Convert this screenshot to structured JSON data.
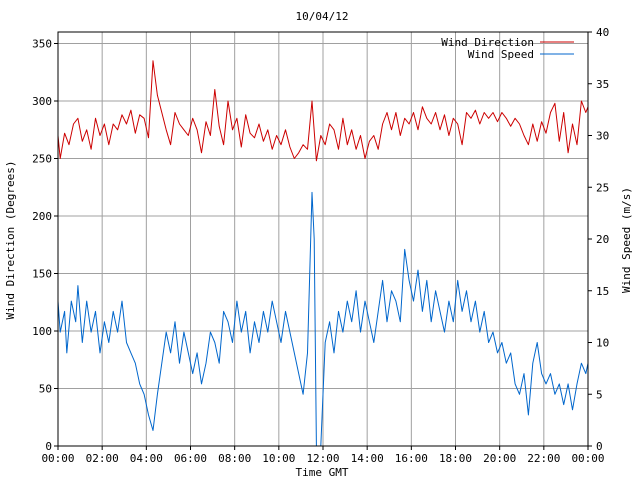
{
  "chart_data": {
    "type": "line",
    "title": "10/04/12",
    "xlabel": "Time GMT",
    "ylabel_left": "Wind Direction (Degrees)",
    "ylabel_right": "Wind Speed (m/s)",
    "x_unit": "hours",
    "xlim": [
      0,
      24
    ],
    "ylim_left": [
      0,
      360
    ],
    "ylim_right": [
      0,
      40
    ],
    "x_ticks": [
      0,
      2,
      4,
      6,
      8,
      10,
      12,
      14,
      16,
      18,
      20,
      22,
      24
    ],
    "x_tick_labels": [
      "00:00",
      "02:00",
      "04:00",
      "06:00",
      "08:00",
      "10:00",
      "12:00",
      "14:00",
      "16:00",
      "18:00",
      "20:00",
      "22:00",
      "00:00"
    ],
    "y_ticks_left": [
      0,
      50,
      100,
      150,
      200,
      250,
      300,
      350
    ],
    "y_tick_labels_left": [
      "0",
      "50",
      "100",
      "150",
      "200",
      "250",
      "300",
      "350"
    ],
    "y_ticks_right": [
      0,
      5,
      10,
      15,
      20,
      25,
      30,
      35,
      40
    ],
    "y_tick_labels_right": [
      "0",
      "5",
      "10",
      "15",
      "20",
      "25",
      "30",
      "35",
      "40"
    ],
    "grid": true,
    "legend_position": "top-right",
    "series": [
      {
        "name": "Wind Direction",
        "axis": "left",
        "color": "#cc0000",
        "points": [
          [
            0.0,
            270
          ],
          [
            0.1,
            250
          ],
          [
            0.3,
            272
          ],
          [
            0.5,
            262
          ],
          [
            0.7,
            280
          ],
          [
            0.9,
            285
          ],
          [
            1.1,
            265
          ],
          [
            1.3,
            275
          ],
          [
            1.5,
            258
          ],
          [
            1.7,
            285
          ],
          [
            1.9,
            270
          ],
          [
            2.1,
            280
          ],
          [
            2.3,
            262
          ],
          [
            2.5,
            280
          ],
          [
            2.7,
            275
          ],
          [
            2.9,
            288
          ],
          [
            3.1,
            280
          ],
          [
            3.3,
            292
          ],
          [
            3.5,
            272
          ],
          [
            3.7,
            288
          ],
          [
            3.9,
            285
          ],
          [
            4.1,
            268
          ],
          [
            4.3,
            335
          ],
          [
            4.5,
            305
          ],
          [
            4.7,
            290
          ],
          [
            4.9,
            275
          ],
          [
            5.1,
            262
          ],
          [
            5.3,
            290
          ],
          [
            5.5,
            280
          ],
          [
            5.7,
            275
          ],
          [
            5.9,
            270
          ],
          [
            6.1,
            285
          ],
          [
            6.3,
            275
          ],
          [
            6.5,
            255
          ],
          [
            6.7,
            282
          ],
          [
            6.9,
            270
          ],
          [
            7.1,
            310
          ],
          [
            7.3,
            278
          ],
          [
            7.5,
            262
          ],
          [
            7.7,
            300
          ],
          [
            7.9,
            275
          ],
          [
            8.1,
            285
          ],
          [
            8.3,
            260
          ],
          [
            8.5,
            288
          ],
          [
            8.7,
            272
          ],
          [
            8.9,
            268
          ],
          [
            9.1,
            280
          ],
          [
            9.3,
            265
          ],
          [
            9.5,
            275
          ],
          [
            9.7,
            258
          ],
          [
            9.9,
            270
          ],
          [
            10.1,
            262
          ],
          [
            10.3,
            275
          ],
          [
            10.5,
            260
          ],
          [
            10.7,
            250
          ],
          [
            10.9,
            255
          ],
          [
            11.1,
            262
          ],
          [
            11.3,
            258
          ],
          [
            11.5,
            300
          ],
          [
            11.7,
            248
          ],
          [
            11.9,
            270
          ],
          [
            12.1,
            262
          ],
          [
            12.3,
            280
          ],
          [
            12.5,
            275
          ],
          [
            12.7,
            258
          ],
          [
            12.9,
            285
          ],
          [
            13.1,
            262
          ],
          [
            13.3,
            275
          ],
          [
            13.5,
            258
          ],
          [
            13.7,
            270
          ],
          [
            13.9,
            250
          ],
          [
            14.1,
            265
          ],
          [
            14.3,
            270
          ],
          [
            14.5,
            258
          ],
          [
            14.7,
            280
          ],
          [
            14.9,
            290
          ],
          [
            15.1,
            275
          ],
          [
            15.3,
            290
          ],
          [
            15.5,
            270
          ],
          [
            15.7,
            285
          ],
          [
            15.9,
            280
          ],
          [
            16.1,
            290
          ],
          [
            16.3,
            275
          ],
          [
            16.5,
            295
          ],
          [
            16.7,
            285
          ],
          [
            16.9,
            280
          ],
          [
            17.1,
            290
          ],
          [
            17.3,
            275
          ],
          [
            17.5,
            288
          ],
          [
            17.7,
            270
          ],
          [
            17.9,
            285
          ],
          [
            18.1,
            280
          ],
          [
            18.3,
            262
          ],
          [
            18.5,
            290
          ],
          [
            18.7,
            285
          ],
          [
            18.9,
            292
          ],
          [
            19.1,
            280
          ],
          [
            19.3,
            290
          ],
          [
            19.5,
            285
          ],
          [
            19.7,
            290
          ],
          [
            19.9,
            282
          ],
          [
            20.1,
            290
          ],
          [
            20.3,
            285
          ],
          [
            20.5,
            278
          ],
          [
            20.7,
            285
          ],
          [
            20.9,
            280
          ],
          [
            21.1,
            270
          ],
          [
            21.3,
            262
          ],
          [
            21.5,
            280
          ],
          [
            21.7,
            265
          ],
          [
            21.9,
            282
          ],
          [
            22.1,
            272
          ],
          [
            22.3,
            290
          ],
          [
            22.5,
            298
          ],
          [
            22.7,
            265
          ],
          [
            22.9,
            290
          ],
          [
            23.1,
            255
          ],
          [
            23.3,
            280
          ],
          [
            23.5,
            262
          ],
          [
            23.7,
            300
          ],
          [
            23.9,
            290
          ],
          [
            24.0,
            295
          ]
        ]
      },
      {
        "name": "Wind Speed",
        "axis": "right",
        "color": "#0066cc",
        "points": [
          [
            0.0,
            14
          ],
          [
            0.1,
            11
          ],
          [
            0.3,
            13
          ],
          [
            0.4,
            9
          ],
          [
            0.6,
            14
          ],
          [
            0.8,
            12
          ],
          [
            0.9,
            15.5
          ],
          [
            1.1,
            10
          ],
          [
            1.3,
            14
          ],
          [
            1.5,
            11
          ],
          [
            1.7,
            13
          ],
          [
            1.9,
            9
          ],
          [
            2.1,
            12
          ],
          [
            2.3,
            10
          ],
          [
            2.5,
            13
          ],
          [
            2.7,
            11
          ],
          [
            2.9,
            14
          ],
          [
            3.1,
            10
          ],
          [
            3.3,
            9
          ],
          [
            3.5,
            8
          ],
          [
            3.7,
            6
          ],
          [
            3.9,
            5
          ],
          [
            4.1,
            3
          ],
          [
            4.3,
            1.5
          ],
          [
            4.5,
            5
          ],
          [
            4.7,
            8
          ],
          [
            4.9,
            11
          ],
          [
            5.1,
            9
          ],
          [
            5.3,
            12
          ],
          [
            5.5,
            8
          ],
          [
            5.7,
            11
          ],
          [
            5.9,
            9
          ],
          [
            6.1,
            7
          ],
          [
            6.3,
            9
          ],
          [
            6.5,
            6
          ],
          [
            6.7,
            8
          ],
          [
            6.9,
            11
          ],
          [
            7.1,
            10
          ],
          [
            7.3,
            8
          ],
          [
            7.5,
            13
          ],
          [
            7.7,
            12
          ],
          [
            7.9,
            10
          ],
          [
            8.1,
            14
          ],
          [
            8.3,
            11
          ],
          [
            8.5,
            13
          ],
          [
            8.7,
            9
          ],
          [
            8.9,
            12
          ],
          [
            9.1,
            10
          ],
          [
            9.3,
            13
          ],
          [
            9.5,
            11
          ],
          [
            9.7,
            14
          ],
          [
            9.9,
            12
          ],
          [
            10.1,
            10
          ],
          [
            10.3,
            13
          ],
          [
            10.5,
            11
          ],
          [
            10.7,
            9
          ],
          [
            10.9,
            7
          ],
          [
            11.1,
            5
          ],
          [
            11.3,
            9
          ],
          [
            11.5,
            24.5
          ],
          [
            11.6,
            20
          ],
          [
            11.7,
            0
          ],
          [
            11.9,
            0
          ],
          [
            12.1,
            10
          ],
          [
            12.3,
            12
          ],
          [
            12.5,
            9
          ],
          [
            12.7,
            13
          ],
          [
            12.9,
            11
          ],
          [
            13.1,
            14
          ],
          [
            13.3,
            12
          ],
          [
            13.5,
            15
          ],
          [
            13.7,
            11
          ],
          [
            13.9,
            14
          ],
          [
            14.1,
            12
          ],
          [
            14.3,
            10
          ],
          [
            14.5,
            13
          ],
          [
            14.7,
            16
          ],
          [
            14.9,
            12
          ],
          [
            15.1,
            15
          ],
          [
            15.3,
            14
          ],
          [
            15.5,
            12
          ],
          [
            15.7,
            19
          ],
          [
            15.9,
            16
          ],
          [
            16.1,
            14
          ],
          [
            16.3,
            17
          ],
          [
            16.5,
            13
          ],
          [
            16.7,
            16
          ],
          [
            16.9,
            12
          ],
          [
            17.1,
            15
          ],
          [
            17.3,
            13
          ],
          [
            17.5,
            11
          ],
          [
            17.7,
            14
          ],
          [
            17.9,
            12
          ],
          [
            18.1,
            16
          ],
          [
            18.3,
            13
          ],
          [
            18.5,
            15
          ],
          [
            18.7,
            12
          ],
          [
            18.9,
            14
          ],
          [
            19.1,
            11
          ],
          [
            19.3,
            13
          ],
          [
            19.5,
            10
          ],
          [
            19.7,
            11
          ],
          [
            19.9,
            9
          ],
          [
            20.1,
            10
          ],
          [
            20.3,
            8
          ],
          [
            20.5,
            9
          ],
          [
            20.7,
            6
          ],
          [
            20.9,
            5
          ],
          [
            21.1,
            7
          ],
          [
            21.3,
            3
          ],
          [
            21.5,
            8
          ],
          [
            21.7,
            10
          ],
          [
            21.9,
            7
          ],
          [
            22.1,
            6
          ],
          [
            22.3,
            7
          ],
          [
            22.5,
            5
          ],
          [
            22.7,
            6
          ],
          [
            22.9,
            4
          ],
          [
            23.1,
            6
          ],
          [
            23.3,
            3.5
          ],
          [
            23.5,
            6
          ],
          [
            23.7,
            8
          ],
          [
            23.9,
            7
          ],
          [
            24.0,
            8
          ]
        ]
      }
    ]
  }
}
